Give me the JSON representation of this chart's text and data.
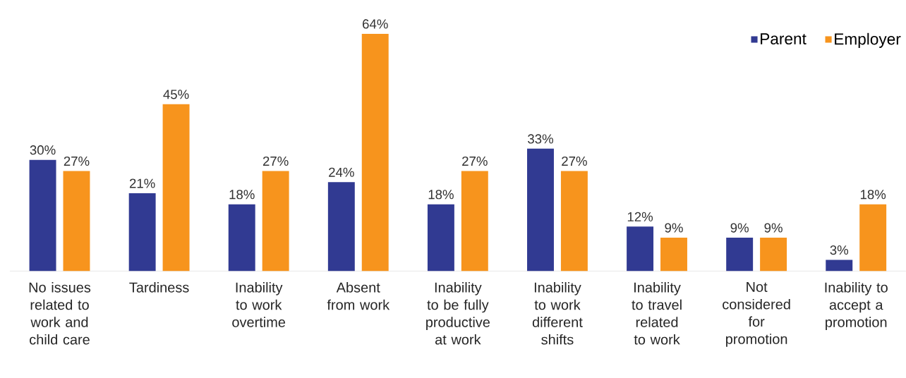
{
  "chart_data": {
    "type": "bar",
    "categories": [
      "No issues related to work and child care",
      "Tardiness",
      "Inability to work overtime",
      "Absent from work",
      "Inability to be fully productive at work",
      "Inability to work different shifts",
      "Inability to travel related to work",
      "Not considered for promotion",
      "Inability to accept a promotion"
    ],
    "series": [
      {
        "name": "Parent",
        "color": "#313a92",
        "values": [
          30,
          21,
          18,
          24,
          18,
          33,
          12,
          9,
          3
        ],
        "value_labels": [
          "30%",
          "21%",
          "18%",
          "24%",
          "18%",
          "33%",
          "12%",
          "9%",
          "3%"
        ]
      },
      {
        "name": "Employer",
        "color": "#f7941d",
        "values": [
          27,
          45,
          27,
          64,
          27,
          27,
          9,
          9,
          18
        ],
        "value_labels": [
          "27%",
          "45%",
          "27%",
          "64%",
          "27%",
          "27%",
          "9%",
          "9%",
          "18%"
        ]
      }
    ],
    "legend": "top right"
  }
}
